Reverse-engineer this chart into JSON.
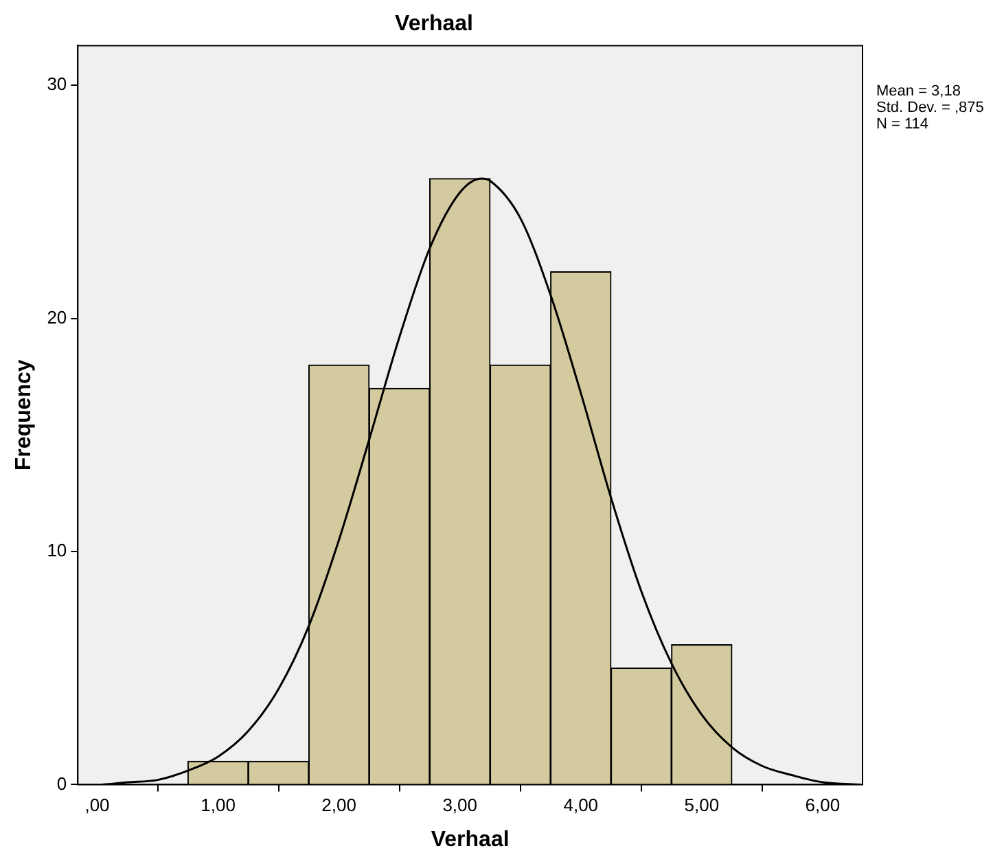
{
  "chart_data": {
    "type": "histogram",
    "title": "Verhaal",
    "xlabel": "Verhaal",
    "ylabel": "Frequency",
    "annotations": [
      "Mean = 3,18",
      "Std. Dev. = ,875",
      "N = 114"
    ],
    "bins": [
      0.75,
      1.25,
      1.75,
      2.25,
      2.75,
      3.25,
      3.75,
      4.25,
      4.75,
      5.25
    ],
    "series": [
      {
        "color": "#d4ca9f",
        "values": [
          1,
          1,
          18,
          17,
          26,
          18,
          22,
          5,
          6
        ]
      },
      {
        "type": "line",
        "color": "#000000",
        "x": [
          -0.16,
          0,
          0.25,
          0.5,
          0.75,
          1,
          1.25,
          1.5,
          1.75,
          2,
          2.25,
          2.5,
          2.75,
          3,
          3.18,
          3.25,
          3.5,
          3.75,
          4,
          4.25,
          4.5,
          4.75,
          5,
          5.25,
          5.5,
          5.75,
          6,
          6.33
        ],
        "values": [
          0.0,
          0.0,
          0.1,
          0.2,
          0.6,
          1.2,
          2.3,
          4.1,
          6.8,
          10.5,
          14.8,
          19.2,
          23.0,
          25.4,
          26.0,
          25.9,
          24.3,
          21.0,
          16.8,
          12.3,
          8.3,
          5.2,
          3.0,
          1.6,
          0.8,
          0.4,
          0.1,
          0.0
        ]
      }
    ],
    "xlim": [
      -0.16,
      6.33
    ],
    "ylim": [
      0,
      31.7
    ],
    "xticks": [
      {
        "value": 0,
        "label": ",00"
      },
      {
        "value": 1,
        "label": "1,00"
      },
      {
        "value": 2,
        "label": "2,00"
      },
      {
        "value": 3,
        "label": "3,00"
      },
      {
        "value": 4,
        "label": "4,00"
      },
      {
        "value": 5,
        "label": "5,00"
      },
      {
        "value": 6,
        "label": "6,00"
      }
    ],
    "yticks": [
      0,
      10,
      20,
      30
    ],
    "grid": false,
    "marker": "none"
  }
}
